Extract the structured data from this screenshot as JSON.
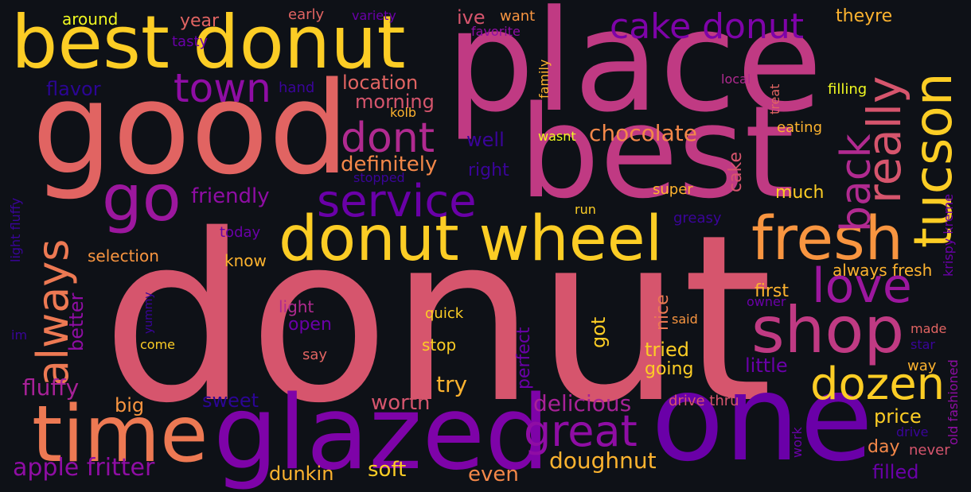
{
  "words": {
    "donut": {
      "text": "donut",
      "color": "#d6556d"
    },
    "place": {
      "text": "place",
      "color": "#c03a83"
    },
    "best": {
      "text": "best",
      "color": "#c03a83"
    },
    "good": {
      "text": "good",
      "color": "#e16462"
    },
    "best_donut": {
      "text": "best donut",
      "color": "#fccd25"
    },
    "one": {
      "text": "one",
      "color": "#6a00a8"
    },
    "glazed": {
      "text": "glazed",
      "color": "#7e03a8"
    },
    "time": {
      "text": "time",
      "color": "#ed7953"
    },
    "donut_wheel": {
      "text": "donut wheel",
      "color": "#fccd25"
    },
    "go": {
      "text": "go",
      "color": "#9c179e"
    },
    "fresh": {
      "text": "fresh",
      "color": "#f89540"
    },
    "shop": {
      "text": "shop",
      "color": "#c03a83"
    },
    "always": {
      "text": "always",
      "color": "#ed7953"
    },
    "tucson": {
      "text": "tucson",
      "color": "#fccd25"
    },
    "really": {
      "text": "really",
      "color": "#d6556d"
    },
    "back": {
      "text": "back",
      "color": "#b12a90"
    },
    "love": {
      "text": "love",
      "color": "#9c179e"
    },
    "dozen": {
      "text": "dozen",
      "color": "#fccd25"
    },
    "great": {
      "text": "great",
      "color": "#8f0da4"
    },
    "service": {
      "text": "service",
      "color": "#6a00a8"
    },
    "dont": {
      "text": "dont",
      "color": "#b12a90"
    },
    "town": {
      "text": "town",
      "color": "#8f0da4"
    },
    "cake_donut": {
      "text": "cake donut",
      "color": "#7e03a8"
    },
    "apple_fritter": {
      "text": "apple fritter",
      "color": "#8f0da4"
    },
    "fluffy": {
      "text": "fluffy",
      "color": "#a72197"
    },
    "worth": {
      "text": "worth",
      "color": "#d6556d"
    },
    "delicious": {
      "text": "delicious",
      "color": "#a72197"
    },
    "doughnut": {
      "text": "doughnut",
      "color": "#fdb32f"
    },
    "dunkin": {
      "text": "dunkin",
      "color": "#fdb32f"
    },
    "soft": {
      "text": "soft",
      "color": "#fccd25"
    },
    "even": {
      "text": "even",
      "color": "#f48849"
    },
    "try": {
      "text": "try",
      "color": "#fdb32f"
    },
    "big": {
      "text": "big",
      "color": "#f89540"
    },
    "sweet": {
      "text": "sweet",
      "color": "#2b0594"
    },
    "chocolate": {
      "text": "chocolate",
      "color": "#f48849"
    },
    "definitely": {
      "text": "definitely",
      "color": "#f48849"
    },
    "friendly": {
      "text": "friendly",
      "color": "#8f0da4"
    },
    "location": {
      "text": "location",
      "color": "#e16462"
    },
    "morning": {
      "text": "morning",
      "color": "#d6556d"
    },
    "well": {
      "text": "well",
      "color": "#3a049a"
    },
    "right": {
      "text": "right",
      "color": "#3a049a"
    },
    "flavor": {
      "text": "flavor",
      "color": "#2b0594"
    },
    "hand": {
      "text": "hand",
      "color": "#3a049a"
    },
    "year": {
      "text": "year",
      "color": "#e16462"
    },
    "early": {
      "text": "early",
      "color": "#e16462"
    },
    "around": {
      "text": "around",
      "color": "#f0f921"
    },
    "tasty": {
      "text": "tasty",
      "color": "#6a00a8"
    },
    "variety": {
      "text": "variety",
      "color": "#6a00a8"
    },
    "ive": {
      "text": "ive",
      "color": "#d6556d"
    },
    "want": {
      "text": "want",
      "color": "#f89540"
    },
    "favorite": {
      "text": "favorite",
      "color": "#8f0da4"
    },
    "theyre": {
      "text": "theyre",
      "color": "#fdb32f"
    },
    "kolb": {
      "text": "kolb",
      "color": "#fdb32f"
    },
    "family": {
      "text": "family",
      "color": "#fdb32f"
    },
    "wasnt": {
      "text": "wasnt",
      "color": "#f0f921"
    },
    "local": {
      "text": "local",
      "color": "#b12a90"
    },
    "treat": {
      "text": "treat",
      "color": "#e16462"
    },
    "filling": {
      "text": "filling",
      "color": "#f0f921"
    },
    "eating": {
      "text": "eating",
      "color": "#fdb32f"
    },
    "cake": {
      "text": "cake",
      "color": "#d6556d"
    },
    "super": {
      "text": "super",
      "color": "#fdb32f"
    },
    "stopped": {
      "text": "stopped",
      "color": "#3a049a"
    },
    "much": {
      "text": "much",
      "color": "#fccd25"
    },
    "run": {
      "text": "run",
      "color": "#fccd25"
    },
    "greasy": {
      "text": "greasy",
      "color": "#3a049a"
    },
    "krispy_kreme": {
      "text": "krispy kreme",
      "color": "#6a00a8"
    },
    "always_fresh": {
      "text": "always fresh",
      "color": "#fdb32f"
    },
    "first": {
      "text": "first",
      "color": "#fdb32f"
    },
    "owner": {
      "text": "owner",
      "color": "#6a00a8"
    },
    "said": {
      "text": "said",
      "color": "#f89540"
    },
    "made": {
      "text": "made",
      "color": "#e16462"
    },
    "star": {
      "text": "star",
      "color": "#3a049a"
    },
    "old_fashioned": {
      "text": "old fashioned",
      "color": "#8f0da4"
    },
    "drive": {
      "text": "drive",
      "color": "#3a049a"
    },
    "never": {
      "text": "never",
      "color": "#d6556d"
    },
    "work": {
      "text": "work",
      "color": "#6a00a8"
    },
    "filled": {
      "text": "filled",
      "color": "#6a00a8"
    },
    "day": {
      "text": "day",
      "color": "#f48849"
    },
    "way": {
      "text": "way",
      "color": "#fdb32f"
    },
    "little": {
      "text": "little",
      "color": "#6a00a8"
    },
    "price": {
      "text": "price",
      "color": "#fccd25"
    },
    "drive_thru": {
      "text": "drive thru",
      "color": "#d6556d"
    },
    "tried": {
      "text": "tried",
      "color": "#fccd25"
    },
    "going": {
      "text": "going",
      "color": "#fccd25"
    },
    "nice": {
      "text": "nice",
      "color": "#ed7953"
    },
    "got": {
      "text": "got",
      "color": "#fccd25"
    },
    "perfect": {
      "text": "perfect",
      "color": "#6a00a8"
    },
    "stop": {
      "text": "stop",
      "color": "#fccd25"
    },
    "quick": {
      "text": "quick",
      "color": "#fccd25"
    },
    "say": {
      "text": "say",
      "color": "#e16462"
    },
    "open": {
      "text": "open",
      "color": "#6a00a8"
    },
    "light": {
      "text": "light",
      "color": "#b12a90"
    },
    "know": {
      "text": "know",
      "color": "#fdb32f"
    },
    "selection": {
      "text": "selection",
      "color": "#f89540"
    },
    "today": {
      "text": "today",
      "color": "#6a00a8"
    },
    "come": {
      "text": "come",
      "color": "#fccd25"
    },
    "yummy": {
      "text": "yummy",
      "color": "#3a049a"
    },
    "better": {
      "text": "better",
      "color": "#8f0da4"
    },
    "light_fluffy": {
      "text": "light fluffy",
      "color": "#3a049a"
    },
    "im": {
      "text": "im",
      "color": "#3a049a"
    }
  }
}
